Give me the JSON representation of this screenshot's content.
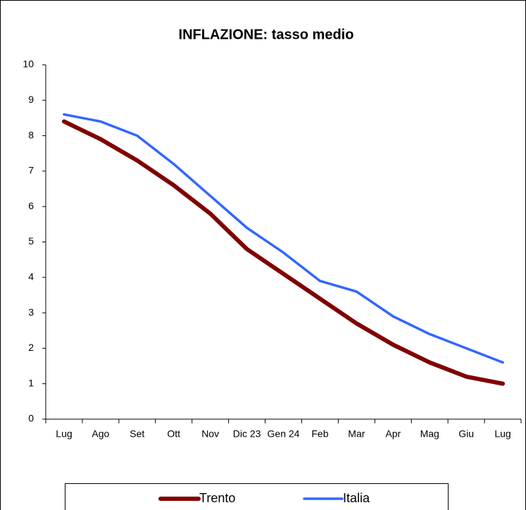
{
  "chart_data": {
    "type": "line",
    "title": "INFLAZIONE: tasso medio",
    "categories": [
      "Lug",
      "Ago",
      "Set",
      "Ott",
      "Nov",
      "Dic 23",
      "Gen 24",
      "Feb",
      "Mar",
      "Apr",
      "Mag",
      "Giu",
      "Lug"
    ],
    "series": [
      {
        "name": "Trento",
        "color": "#800000",
        "values": [
          8.4,
          7.9,
          7.3,
          6.6,
          5.8,
          4.8,
          4.1,
          3.4,
          2.7,
          2.1,
          1.6,
          1.2,
          1.0
        ]
      },
      {
        "name": "Italia",
        "color": "#3366ff",
        "values": [
          8.6,
          8.4,
          8.0,
          7.2,
          6.3,
          5.4,
          4.7,
          3.9,
          3.6,
          2.9,
          2.4,
          2.0,
          1.6
        ]
      }
    ],
    "ylim": [
      0,
      10
    ],
    "yticks": [
      0,
      1,
      2,
      3,
      4,
      5,
      6,
      7,
      8,
      9,
      10
    ],
    "grid": false,
    "legend": "bottom"
  }
}
